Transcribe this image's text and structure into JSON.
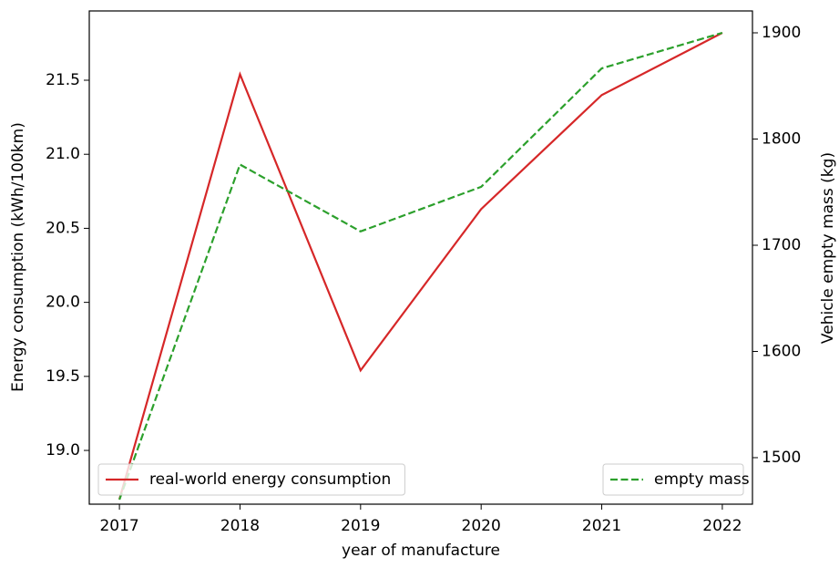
{
  "chart_data": {
    "type": "line",
    "x_label": "year of manufacture",
    "y_label": "Energy consumption (kWh/100km)",
    "y2_label": "Vehicle empty mass (kg)",
    "x": [
      2017,
      2018,
      2019,
      2020,
      2021,
      2022
    ],
    "xlim": [
      2016.75,
      2022.25
    ],
    "xticks": [
      2017,
      2018,
      2019,
      2020,
      2021,
      2022
    ],
    "ylim": [
      18.637,
      21.968
    ],
    "yticks": [
      {
        "value": 19.0,
        "label": "19.0"
      },
      19.5,
      {
        "value": 20.0,
        "label": "20.0"
      },
      20.5,
      {
        "value": 21.0,
        "label": "21.0"
      },
      21.5
    ],
    "y2lim": [
      1456.2,
      1920.6
    ],
    "y2ticks": [
      1500,
      1600,
      1700,
      1800,
      1900
    ],
    "series": [
      {
        "name": "real-world energy consumption",
        "color": "#d62728",
        "dash": "solid",
        "axis": "y",
        "legend_loc": "lower left",
        "values": [
          18.67,
          21.54,
          19.54,
          20.63,
          21.4,
          21.82
        ]
      },
      {
        "name": "empty mass",
        "color": "#2ca02c",
        "dash": "dashed",
        "axis": "y2",
        "legend_loc": "lower right",
        "values": [
          1460.5,
          1776,
          1713,
          1755,
          1866.5,
          1900
        ]
      }
    ]
  }
}
